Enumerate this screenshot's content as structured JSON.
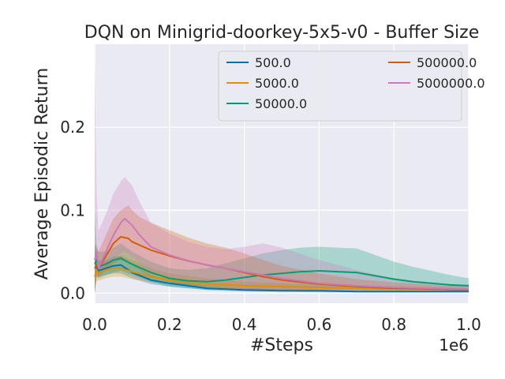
{
  "chart_data": {
    "type": "line",
    "title": "DQN on Minigrid-doorkey-5x5-v0 - Buffer Size",
    "xlabel": "#Steps",
    "ylabel": "Average Episodic Return",
    "x_offset_label": "1e6",
    "xlim": [
      0,
      1.0
    ],
    "ylim": [
      -0.012,
      0.3
    ],
    "grid": true,
    "legend_position": "top-right",
    "legend_columns": 2,
    "x_ticks": [
      0.0,
      0.2,
      0.4,
      0.6,
      0.8,
      1.0
    ],
    "x_tick_labels": [
      "0.0",
      "0.2",
      "0.4",
      "0.6",
      "0.8",
      "1.0"
    ],
    "y_ticks": [
      0.0,
      0.1,
      0.2
    ],
    "y_tick_labels": [
      "0.0",
      "0.1",
      "0.2"
    ],
    "series": [
      {
        "name": "500.0",
        "color": "#0173b2",
        "x": [
          0,
          0.005,
          0.01,
          0.03,
          0.05,
          0.07,
          0.1,
          0.15,
          0.2,
          0.3,
          0.4,
          0.5,
          0.6,
          0.7,
          0.8,
          0.9,
          1.0
        ],
        "y": [
          0.03,
          0.032,
          0.027,
          0.03,
          0.033,
          0.034,
          0.025,
          0.016,
          0.012,
          0.006,
          0.004,
          0.003,
          0.003,
          0.002,
          0.002,
          0.002,
          0.002
        ],
        "lower": [
          0.0,
          0.02,
          0.018,
          0.022,
          0.024,
          0.024,
          0.018,
          0.011,
          0.008,
          0.004,
          0.002,
          0.002,
          0.001,
          0.001,
          0.001,
          0.001,
          0.001
        ],
        "upper": [
          0.06,
          0.045,
          0.04,
          0.04,
          0.044,
          0.045,
          0.035,
          0.022,
          0.016,
          0.009,
          0.006,
          0.005,
          0.004,
          0.003,
          0.003,
          0.003,
          0.003
        ]
      },
      {
        "name": "5000.0",
        "color": "#de8f05",
        "x": [
          0,
          0.005,
          0.01,
          0.03,
          0.05,
          0.07,
          0.1,
          0.15,
          0.2,
          0.3,
          0.4,
          0.5,
          0.6,
          0.7,
          0.8,
          0.9,
          1.0
        ],
        "y": [
          0.02,
          0.028,
          0.025,
          0.028,
          0.03,
          0.03,
          0.026,
          0.02,
          0.016,
          0.011,
          0.009,
          0.008,
          0.007,
          0.006,
          0.005,
          0.005,
          0.004
        ],
        "lower": [
          0.0,
          0.015,
          0.015,
          0.018,
          0.02,
          0.02,
          0.017,
          0.013,
          0.01,
          0.007,
          0.005,
          0.004,
          0.004,
          0.003,
          0.003,
          0.002,
          0.002
        ],
        "upper": [
          0.05,
          0.04,
          0.038,
          0.038,
          0.04,
          0.045,
          0.04,
          0.03,
          0.024,
          0.018,
          0.014,
          0.012,
          0.011,
          0.009,
          0.008,
          0.007,
          0.006
        ]
      },
      {
        "name": "50000.0",
        "color": "#029e73",
        "x": [
          0,
          0.005,
          0.01,
          0.03,
          0.05,
          0.07,
          0.1,
          0.15,
          0.2,
          0.25,
          0.3,
          0.35,
          0.4,
          0.45,
          0.5,
          0.55,
          0.6,
          0.65,
          0.7,
          0.75,
          0.8,
          0.85,
          0.9,
          0.95,
          1.0
        ],
        "y": [
          0.035,
          0.04,
          0.032,
          0.035,
          0.04,
          0.042,
          0.035,
          0.025,
          0.018,
          0.015,
          0.014,
          0.016,
          0.019,
          0.022,
          0.024,
          0.026,
          0.027,
          0.026,
          0.025,
          0.021,
          0.017,
          0.014,
          0.012,
          0.01,
          0.009
        ],
        "lower": [
          0.0,
          0.025,
          0.02,
          0.022,
          0.025,
          0.027,
          0.022,
          0.014,
          0.008,
          0.006,
          0.004,
          0.004,
          0.004,
          0.004,
          0.004,
          0.004,
          0.004,
          0.004,
          0.004,
          0.004,
          0.004,
          0.004,
          0.004,
          0.004,
          0.004
        ],
        "upper": [
          0.1,
          0.06,
          0.05,
          0.05,
          0.055,
          0.06,
          0.05,
          0.038,
          0.03,
          0.028,
          0.03,
          0.036,
          0.042,
          0.048,
          0.052,
          0.055,
          0.056,
          0.055,
          0.054,
          0.046,
          0.038,
          0.032,
          0.027,
          0.022,
          0.018
        ]
      },
      {
        "name": "500000.0",
        "color": "#d55e00",
        "x": [
          0,
          0.005,
          0.01,
          0.03,
          0.05,
          0.07,
          0.09,
          0.1,
          0.12,
          0.15,
          0.2,
          0.25,
          0.3,
          0.35,
          0.4,
          0.45,
          0.5,
          0.6,
          0.7,
          0.8,
          0.9,
          1.0
        ],
        "y": [
          0.03,
          0.035,
          0.03,
          0.045,
          0.06,
          0.068,
          0.066,
          0.062,
          0.058,
          0.052,
          0.045,
          0.039,
          0.034,
          0.03,
          0.025,
          0.02,
          0.016,
          0.011,
          0.008,
          0.006,
          0.005,
          0.004
        ],
        "lower": [
          0.0,
          0.02,
          0.02,
          0.028,
          0.036,
          0.04,
          0.038,
          0.034,
          0.028,
          0.02,
          0.014,
          0.01,
          0.008,
          0.006,
          0.005,
          0.004,
          0.004,
          0.003,
          0.002,
          0.002,
          0.002,
          0.002
        ],
        "upper": [
          0.06,
          0.055,
          0.05,
          0.07,
          0.09,
          0.1,
          0.106,
          0.1,
          0.092,
          0.085,
          0.076,
          0.067,
          0.06,
          0.055,
          0.048,
          0.04,
          0.033,
          0.024,
          0.017,
          0.013,
          0.01,
          0.008
        ]
      },
      {
        "name": "5000000.0",
        "color": "#cc78bc",
        "x": [
          0,
          0.005,
          0.01,
          0.03,
          0.05,
          0.07,
          0.08,
          0.1,
          0.12,
          0.15,
          0.2,
          0.25,
          0.3,
          0.35,
          0.4,
          0.45,
          0.5,
          0.6,
          0.7,
          0.8,
          0.9,
          1.0
        ],
        "y": [
          0.04,
          0.05,
          0.03,
          0.05,
          0.07,
          0.085,
          0.09,
          0.082,
          0.07,
          0.056,
          0.046,
          0.039,
          0.034,
          0.03,
          0.026,
          0.022,
          0.018,
          0.012,
          0.009,
          0.007,
          0.006,
          0.005
        ],
        "lower": [
          0.0,
          0.03,
          0.02,
          0.03,
          0.04,
          0.048,
          0.05,
          0.045,
          0.036,
          0.026,
          0.018,
          0.014,
          0.01,
          0.008,
          0.006,
          0.005,
          0.004,
          0.003,
          0.003,
          0.002,
          0.002,
          0.002
        ],
        "upper": [
          0.28,
          0.12,
          0.075,
          0.095,
          0.12,
          0.135,
          0.14,
          0.13,
          0.11,
          0.085,
          0.072,
          0.062,
          0.056,
          0.053,
          0.056,
          0.06,
          0.055,
          0.04,
          0.028,
          0.018,
          0.013,
          0.01
        ]
      }
    ]
  }
}
